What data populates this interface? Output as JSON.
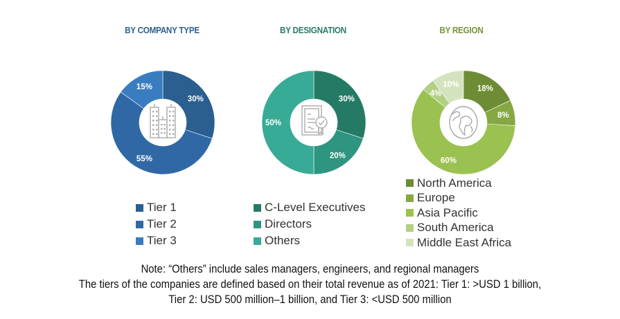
{
  "chart_data": [
    {
      "type": "pie",
      "variant": "donut",
      "title": "BY COMPANY TYPE",
      "title_color": "#2e5f8f",
      "center_icon": "buildings-icon",
      "categories": [
        "Tier 1",
        "Tier 2",
        "Tier 3"
      ],
      "values": [
        30,
        55,
        15
      ],
      "labels": [
        "30%",
        "55%",
        "15%"
      ],
      "colors": [
        "#2a5f8f",
        "#3068a6",
        "#3a7cc0"
      ],
      "legend": "bottom"
    },
    {
      "type": "pie",
      "variant": "donut",
      "title": "BY DESIGNATION",
      "title_color": "#2a7a68",
      "center_icon": "certificate-icon",
      "categories": [
        "C-Level Executives",
        "Directors",
        "Others"
      ],
      "values": [
        30,
        20,
        50
      ],
      "labels": [
        "30%",
        "20%",
        "50%"
      ],
      "colors": [
        "#257a66",
        "#2e9580",
        "#38ab96"
      ],
      "legend": "bottom"
    },
    {
      "type": "pie",
      "variant": "donut",
      "title": "BY REGION",
      "title_color": "#76923a",
      "center_icon": "globe-icon",
      "categories": [
        "North America",
        "Europe",
        "Asia Pacific",
        "South America",
        "Middle East Africa"
      ],
      "values": [
        18,
        8,
        60,
        4,
        10
      ],
      "labels": [
        "18%",
        "8%",
        "60%",
        "4%",
        "10%"
      ],
      "colors": [
        "#6e8c35",
        "#86a844",
        "#9bc150",
        "#b2cf85",
        "#d4e3be"
      ],
      "legend": "bottom"
    }
  ],
  "notes": [
    "Note: “Others” include sales managers, engineers, and regional managers",
    "The tiers of the companies are defined based on their total revenue as of 2021: Tier 1: >USD 1 billion,",
    "Tier 2: USD 500 million–1 billion, and Tier 3: <USD 500 million"
  ]
}
